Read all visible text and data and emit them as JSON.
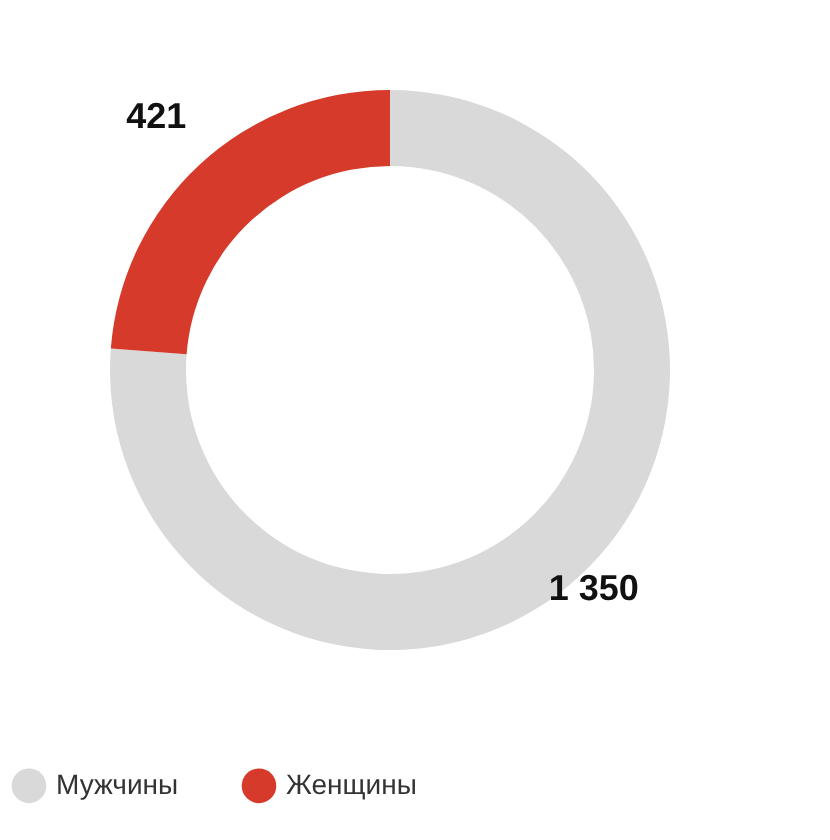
{
  "chart_data": {
    "type": "donut",
    "categories": [
      "Мужчины",
      "Женщины"
    ],
    "values": [
      1350,
      421
    ],
    "value_labels": [
      "1 350",
      "421"
    ],
    "colors": [
      "#d9d9d9",
      "#d63a2a"
    ],
    "legend": "bottom"
  }
}
